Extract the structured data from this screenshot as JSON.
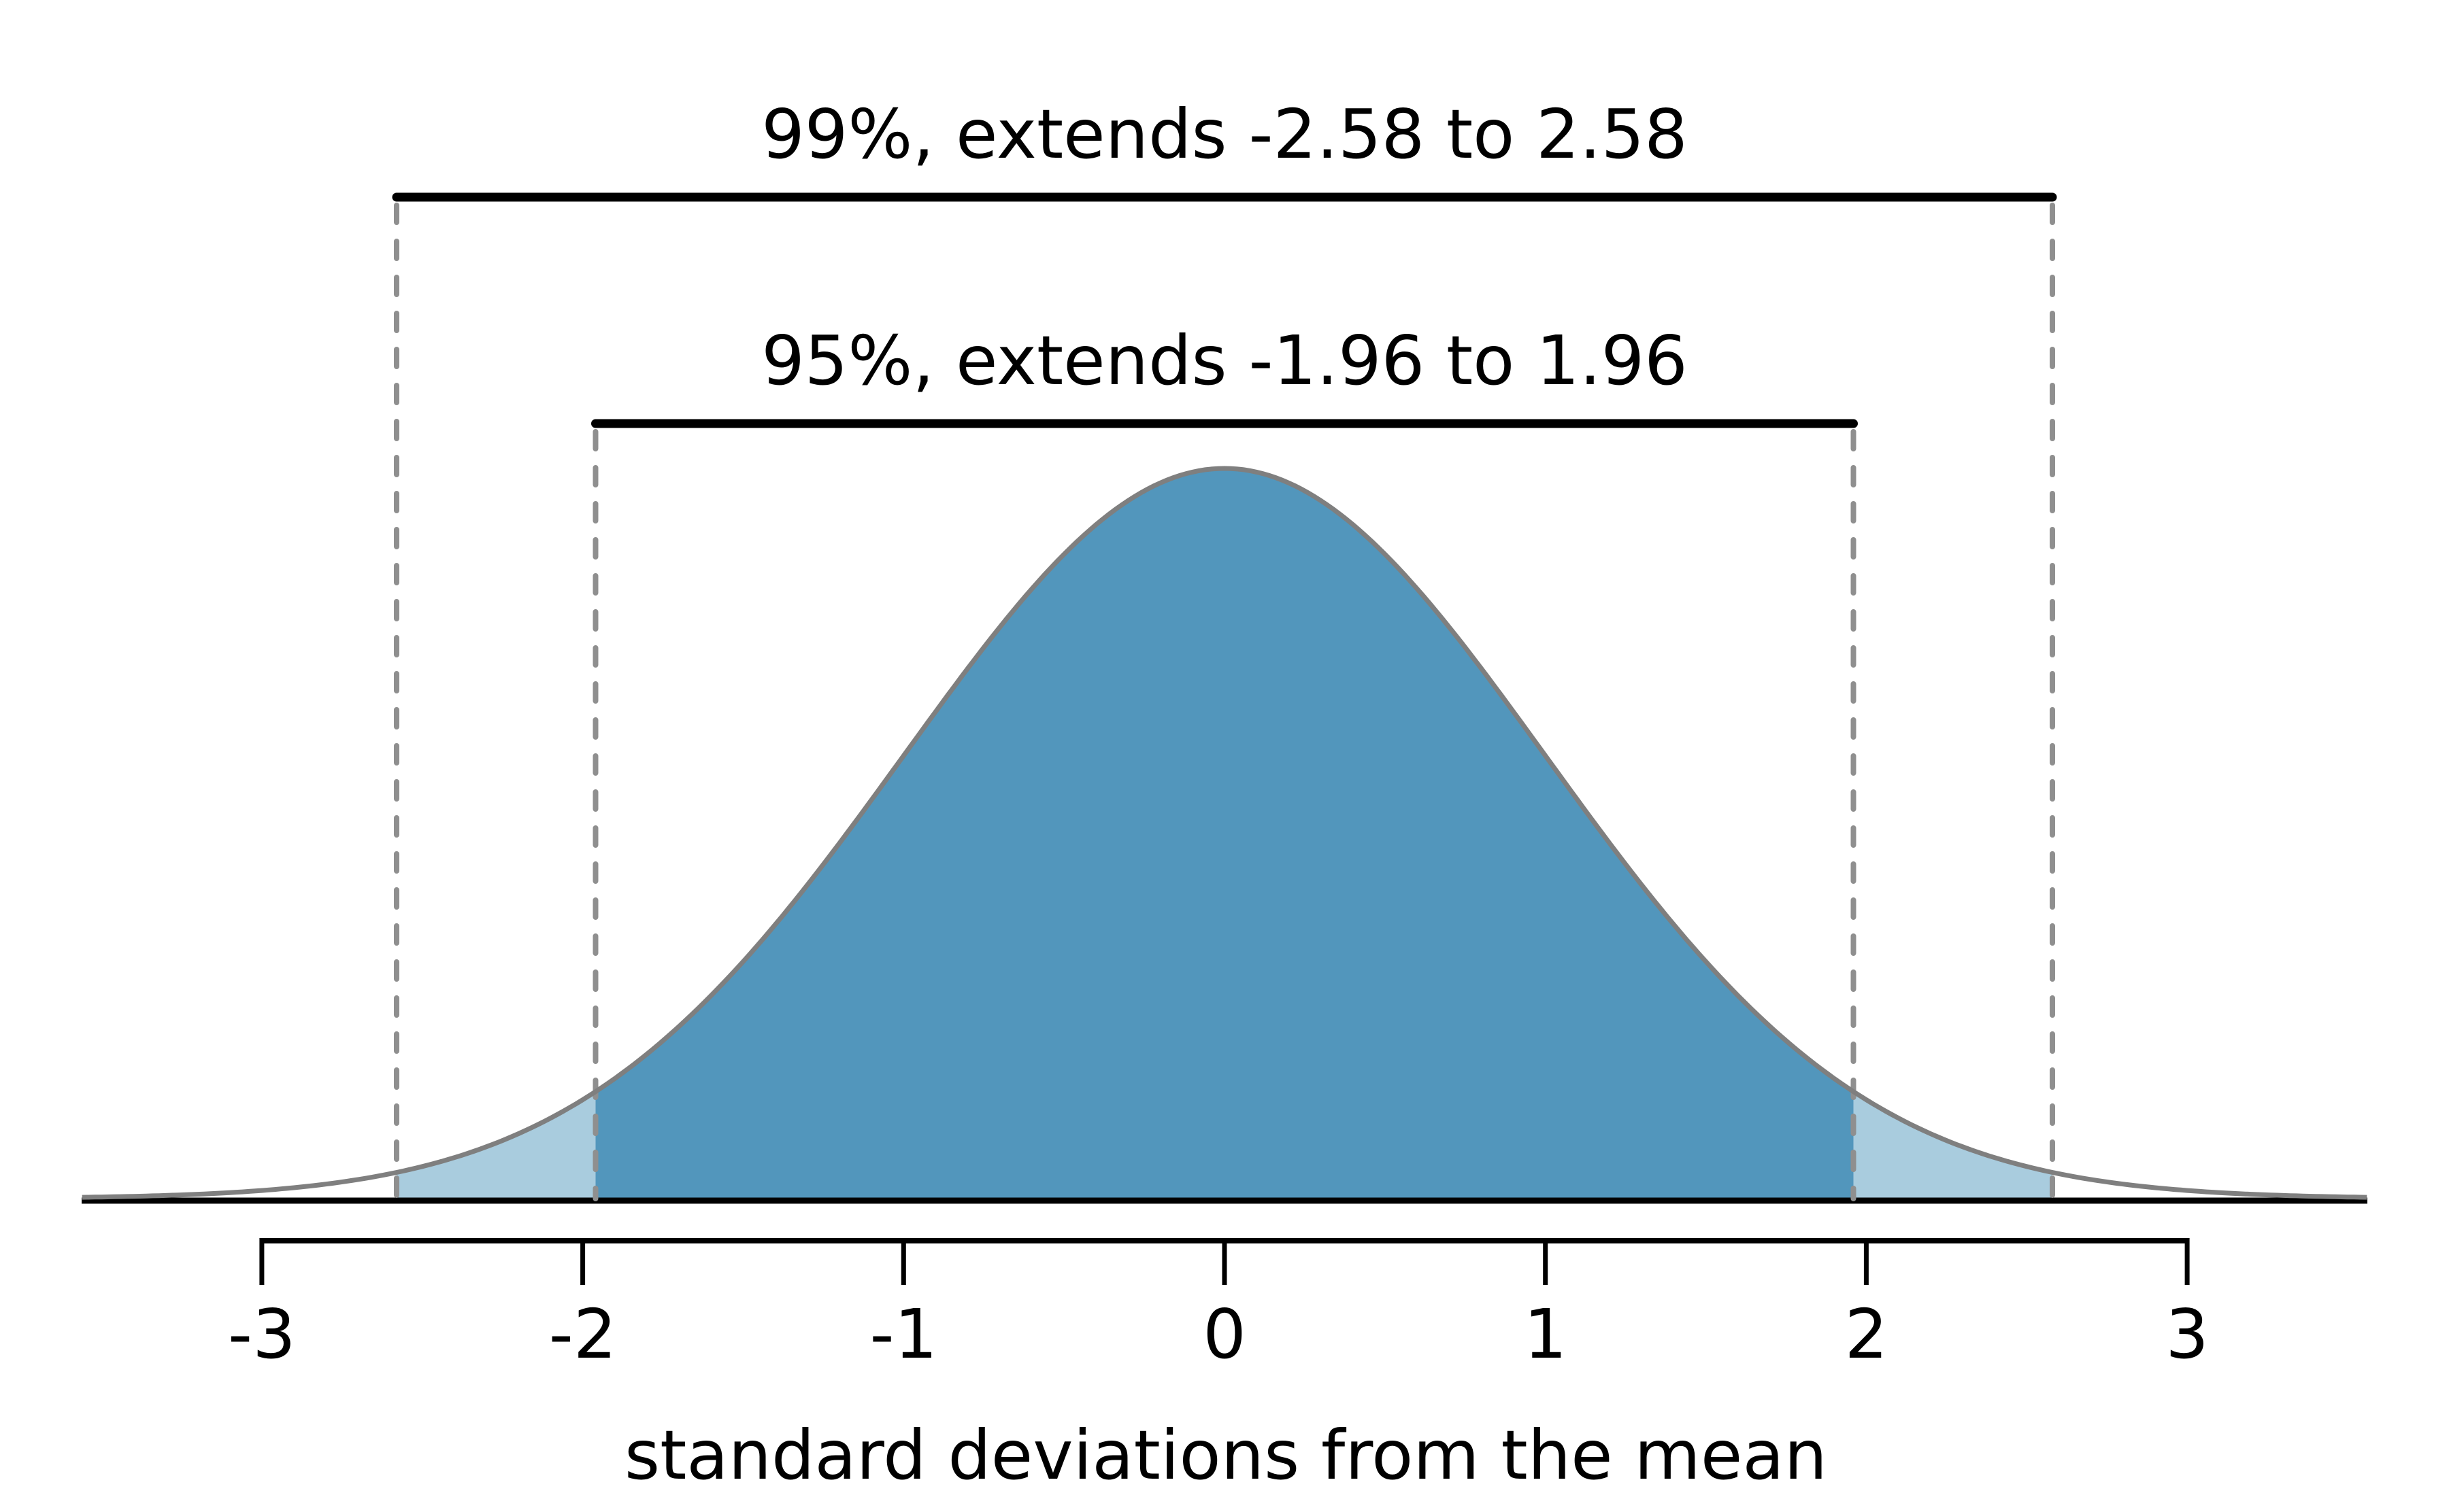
{
  "chart_data": {
    "type": "area",
    "title": "",
    "xlabel": "standard deviations from the mean",
    "distribution": {
      "name": "standard normal",
      "mean": 0,
      "sd": 1,
      "peak_density": 0.399
    },
    "x_ticks": [
      -3,
      -2,
      -1,
      0,
      1,
      2,
      3
    ],
    "x_axis_range": [
      -3,
      3
    ],
    "drawn_curve_range": [
      -3.56,
      3.56
    ],
    "grid": "off",
    "legend": "none",
    "curve_samples": [
      {
        "z": -3,
        "density": 0.004
      },
      {
        "z": -2,
        "density": 0.054
      },
      {
        "z": -1,
        "density": 0.242
      },
      {
        "z": 0,
        "density": 0.399
      },
      {
        "z": 1,
        "density": 0.242
      },
      {
        "z": 2,
        "density": 0.054
      },
      {
        "z": 3,
        "density": 0.004
      }
    ],
    "intervals": [
      {
        "coverage": "99",
        "label": "99%, extends -2.58 to 2.58",
        "from": -2.58,
        "to": 2.58
      },
      {
        "coverage": "95",
        "label": "95%, extends -1.96 to 1.96",
        "from": -1.96,
        "to": 1.96
      }
    ],
    "shaded_regions": [
      {
        "name": "region-95-central-dark",
        "from": -1.96,
        "to": 1.96,
        "color_key": "fill_dark"
      },
      {
        "name": "region-99-left-tail-light",
        "from": -2.58,
        "to": -1.96,
        "color_key": "fill_light"
      },
      {
        "name": "region-99-right-tail-light",
        "from": 1.96,
        "to": 2.58,
        "color_key": "fill_light"
      }
    ],
    "colors": {
      "fill_dark": "#5296BC",
      "fill_light": "#A9CCDE",
      "curve": "#7F7F7F",
      "dashed": "#8F8F8F",
      "bracket": "#000000",
      "axis": "#000000",
      "text": "#000000",
      "background": "#FFFFFF"
    }
  }
}
